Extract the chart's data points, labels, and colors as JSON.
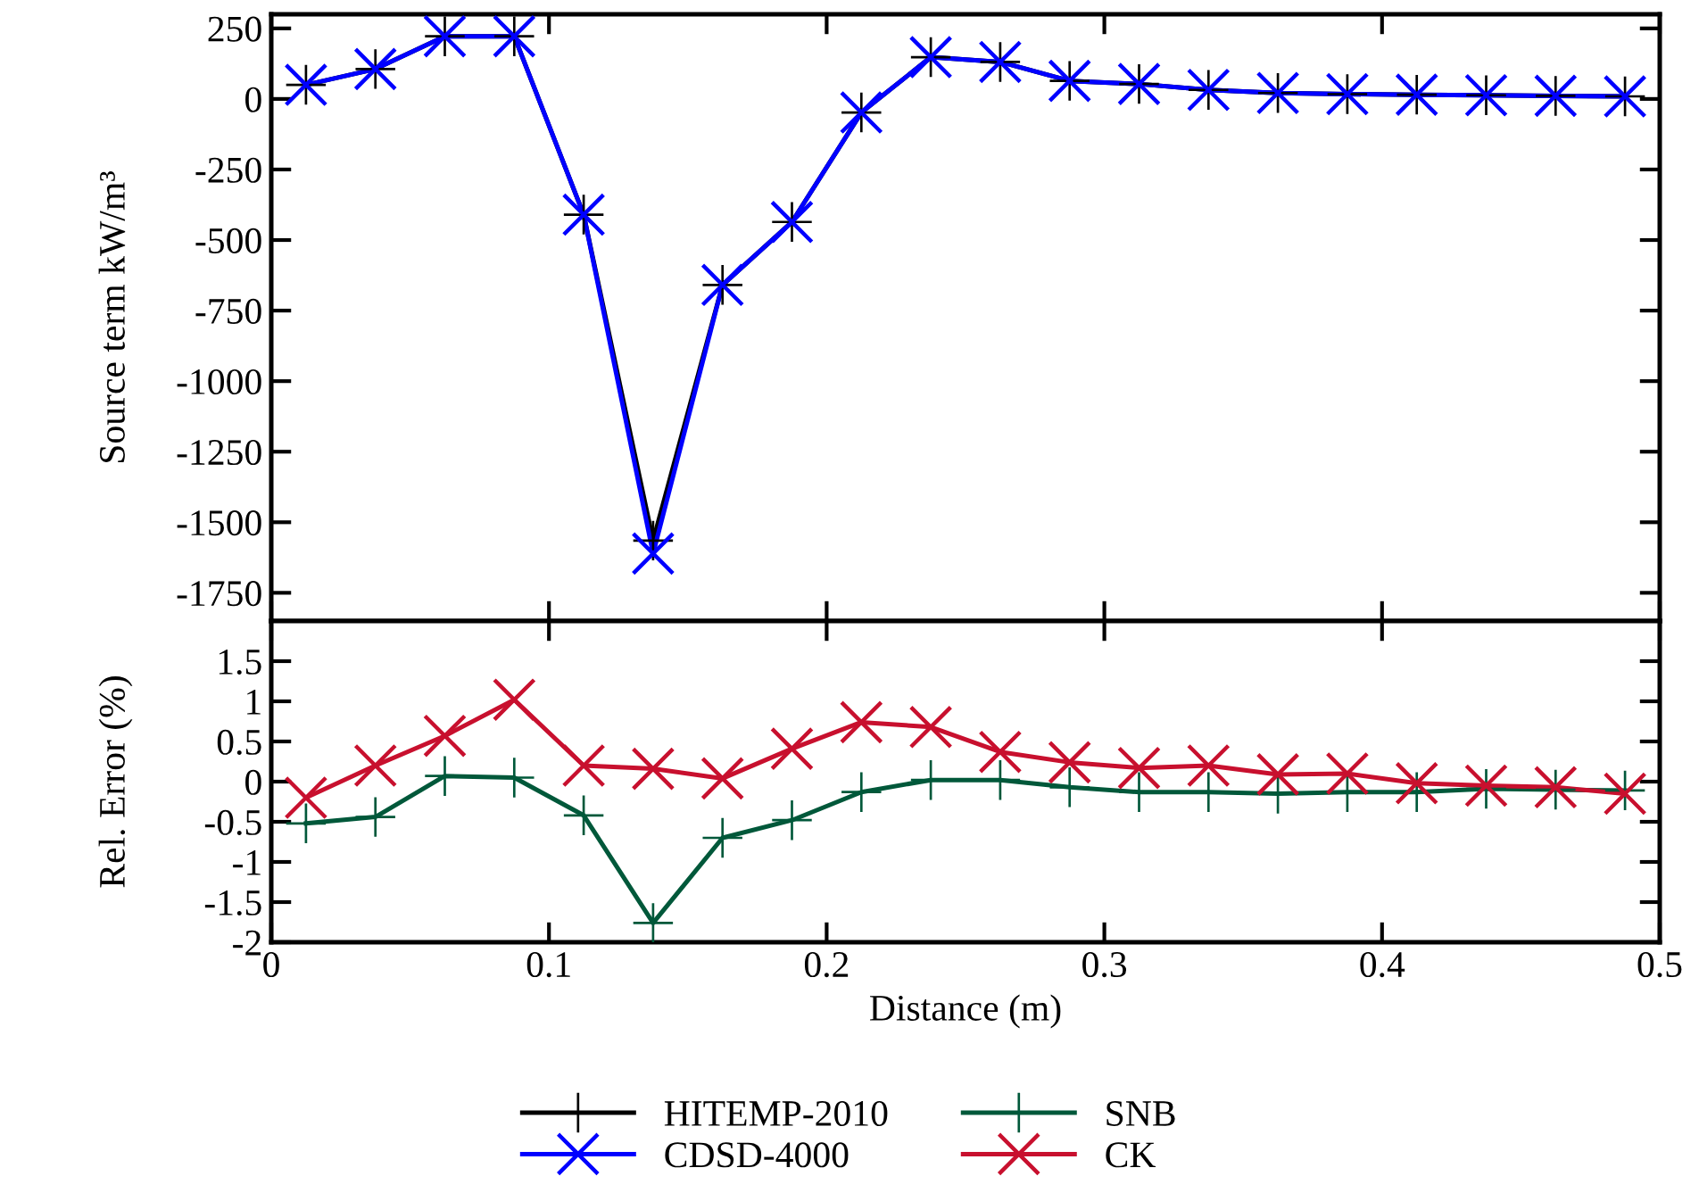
{
  "chart_data": [
    {
      "type": "line",
      "ylabel": "Source term kW/m³",
      "x": [
        0.0125,
        0.0375,
        0.0625,
        0.0875,
        0.1125,
        0.1375,
        0.1625,
        0.1875,
        0.2125,
        0.2375,
        0.2625,
        0.2875,
        0.3125,
        0.3375,
        0.3625,
        0.3875,
        0.4125,
        0.4375,
        0.4625,
        0.4875
      ],
      "series": [
        {
          "name": "HITEMP-2010",
          "color": "#000000",
          "marker": "cross",
          "values": [
            50,
            106,
            222,
            222,
            -410,
            -1565,
            -659,
            -436,
            -48,
            148,
            131,
            64,
            53,
            32,
            21,
            17,
            15,
            13,
            11,
            9
          ]
        },
        {
          "name": "CDSD-4000",
          "color": "#0000ff",
          "marker": "x",
          "values": [
            50,
            106,
            222,
            222,
            -410,
            -1611,
            -659,
            -436,
            -48,
            148,
            131,
            64,
            53,
            32,
            21,
            17,
            15,
            13,
            11,
            9
          ]
        }
      ],
      "xlim": [
        0,
        0.5
      ],
      "xticks": [
        0,
        0.1,
        0.2,
        0.3,
        0.4,
        0.5
      ],
      "ylim": [
        -1850,
        300
      ],
      "yticks": [
        250,
        0,
        -250,
        -500,
        -750,
        -1000,
        -1250,
        -1500,
        -1750
      ],
      "tick_labels": "y",
      "grid": false,
      "legend": "bottom",
      "line_style": "solid"
    },
    {
      "type": "line",
      "xlabel": "Distance (m)",
      "ylabel": "Rel. Error (%)",
      "x": [
        0.0125,
        0.0375,
        0.0625,
        0.0875,
        0.1125,
        0.1375,
        0.1625,
        0.1875,
        0.2125,
        0.2375,
        0.2625,
        0.2875,
        0.3125,
        0.3375,
        0.3625,
        0.3875,
        0.4125,
        0.4375,
        0.4625,
        0.4875
      ],
      "series": [
        {
          "name": "SNB",
          "color": "#00583a",
          "marker": "cross",
          "values": [
            -0.52,
            -0.44,
            0.07,
            0.05,
            -0.42,
            -1.76,
            -0.7,
            -0.48,
            -0.13,
            0.02,
            0.02,
            -0.07,
            -0.13,
            -0.13,
            -0.15,
            -0.13,
            -0.13,
            -0.09,
            -0.1,
            -0.11
          ]
        },
        {
          "name": "CK",
          "color": "#c8102e",
          "marker": "x",
          "values": [
            -0.2,
            0.2,
            0.57,
            1.02,
            0.2,
            0.16,
            0.04,
            0.41,
            0.74,
            0.68,
            0.37,
            0.24,
            0.17,
            0.2,
            0.09,
            0.1,
            -0.02,
            -0.05,
            -0.07,
            -0.15
          ]
        }
      ],
      "xlim": [
        0,
        0.5
      ],
      "xticks": [
        0,
        0.1,
        0.2,
        0.3,
        0.4,
        0.5
      ],
      "ylim": [
        -2,
        2
      ],
      "yticks": [
        1.5,
        1,
        0.5,
        0,
        -0.5,
        -1,
        -1.5,
        -2
      ],
      "grid": false,
      "legend": "bottom",
      "line_style": "solid"
    }
  ]
}
